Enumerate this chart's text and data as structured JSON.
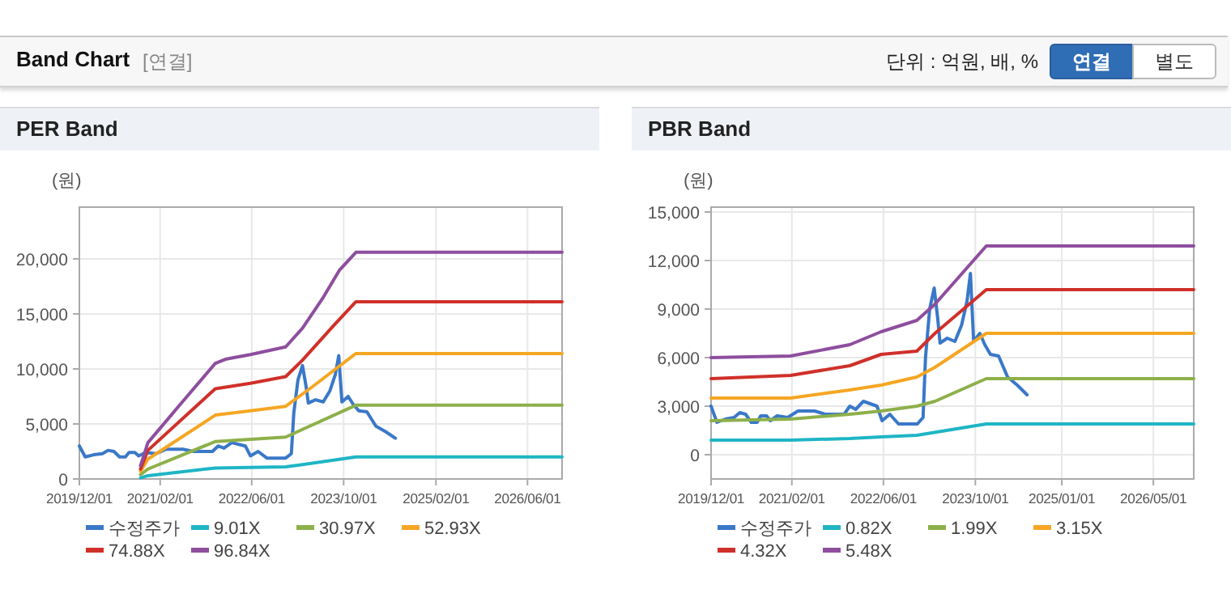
{
  "chart_data": [
    {
      "type": "other",
      "title": "Band Chart",
      "annotations": [
        "[연결]",
        "단위 : 억원, 배, %",
        "연결",
        "별도"
      ]
    },
    {
      "type": "line",
      "title": "PER Band",
      "ylabel": "(원)",
      "grid": true,
      "legend": "bottom",
      "xlim": [
        "2019-12-01",
        "2026-12-01"
      ],
      "ylim": [
        0,
        24700
      ],
      "xticks": [
        {
          "value": "2019-12-01",
          "label": "2019/12/01"
        },
        {
          "value": "2021-02-01",
          "label": "2021/02/01"
        },
        {
          "value": "2022-06-01",
          "label": "2022/06/01"
        },
        {
          "value": "2023-10-01",
          "label": "2023/10/01"
        },
        {
          "value": "2025-02-01",
          "label": "2025/02/01"
        },
        {
          "value": "2026-06-01",
          "label": "2026/06/01"
        }
      ],
      "yticks": [
        0,
        {
          "value": 5000,
          "label": "5,000"
        },
        {
          "value": 10000,
          "label": "10,000"
        },
        {
          "value": 15000,
          "label": "15,000"
        },
        {
          "value": 20000,
          "label": "20,000"
        }
      ],
      "series": [
        {
          "name": "수정주가",
          "color": "#3a78c8",
          "x": [
            "2019-12-01",
            "2020-01-01",
            "2020-02-15",
            "2020-04-01",
            "2020-05-01",
            "2020-06-01",
            "2020-07-01",
            "2020-08-01",
            "2020-08-20",
            "2020-09-20",
            "2020-10-10",
            "2020-11-15",
            "2021-01-10",
            "2021-03-05",
            "2021-06-01",
            "2021-07-28",
            "2021-11-05",
            "2021-12-05",
            "2022-01-05",
            "2022-02-15",
            "2022-04-28",
            "2022-05-25",
            "2022-07-05",
            "2022-08-20",
            "2022-11-28",
            "2022-12-28",
            "2023-01-10",
            "2023-02-01",
            "2023-02-25",
            "2023-03-15",
            "2023-03-28",
            "2023-05-05",
            "2023-06-15",
            "2023-07-20",
            "2023-08-18",
            "2023-09-05",
            "2023-09-22",
            "2023-10-25",
            "2023-11-20",
            "2023-12-20",
            "2024-02-01",
            "2024-03-20",
            "2024-05-10",
            "2024-07-01"
          ],
          "values": [
            3000,
            2000,
            2200,
            2300,
            2600,
            2500,
            2000,
            2000,
            2400,
            2400,
            2100,
            2400,
            2300,
            2700,
            2700,
            2500,
            2500,
            3000,
            2800,
            3300,
            3000,
            2100,
            2500,
            1900,
            1900,
            2300,
            6000,
            9000,
            10300,
            8500,
            6900,
            7200,
            7000,
            8000,
            9500,
            11200,
            7000,
            7500,
            6800,
            6200,
            6100,
            4800,
            4300,
            3700
          ]
        },
        {
          "name": "9.01X",
          "color": "#1fb5c5",
          "x": [
            "2020-10-20",
            "2020-11-28",
            "2021-11-20",
            "2022-11-28",
            "2023-02-25",
            "2023-12-05",
            "2026-12-01"
          ],
          "values": [
            100,
            300,
            1000,
            1100,
            1300,
            2000,
            2000
          ]
        },
        {
          "name": "30.97X",
          "color": "#8db04a",
          "x": [
            "2020-10-20",
            "2020-11-28",
            "2021-11-20",
            "2022-05-25",
            "2022-11-28",
            "2023-02-25",
            "2023-12-05",
            "2026-12-01"
          ],
          "values": [
            400,
            900,
            3400,
            3600,
            3800,
            4500,
            6700,
            6700
          ]
        },
        {
          "name": "52.93X",
          "color": "#f5a623",
          "x": [
            "2020-10-20",
            "2020-11-28",
            "2021-11-20",
            "2022-05-25",
            "2022-11-28",
            "2023-04-20",
            "2023-12-05",
            "2026-12-01"
          ],
          "values": [
            700,
            1800,
            5800,
            6200,
            6600,
            8400,
            11400,
            11400
          ]
        },
        {
          "name": "74.88X",
          "color": "#d0302a",
          "x": [
            "2020-10-20",
            "2020-11-28",
            "2021-11-20",
            "2022-05-25",
            "2022-11-28",
            "2023-02-25",
            "2023-08-12",
            "2023-12-05",
            "2026-12-01"
          ],
          "values": [
            900,
            2600,
            8200,
            8700,
            9300,
            10800,
            14000,
            16100,
            16100
          ]
        },
        {
          "name": "96.84X",
          "color": "#8e4e9e",
          "x": [
            "2020-10-20",
            "2020-11-28",
            "2021-05-05",
            "2021-11-20",
            "2022-01-18",
            "2022-05-25",
            "2022-11-28",
            "2023-02-25",
            "2023-06-15",
            "2023-09-10",
            "2023-12-05",
            "2026-12-01"
          ],
          "values": [
            1200,
            3300,
            6500,
            10500,
            10900,
            11300,
            12000,
            13700,
            16500,
            19000,
            20600,
            20600
          ]
        }
      ]
    },
    {
      "type": "line",
      "title": "PBR Band",
      "ylabel": "(원)",
      "grid": true,
      "legend": "bottom",
      "xlim": [
        "2019-12-01",
        "2026-12-01"
      ],
      "ylim": [
        -1500,
        15300
      ],
      "xticks": [
        {
          "value": "2019-12-01",
          "label": "2019/12/01"
        },
        {
          "value": "2021-02-01",
          "label": "2021/02/01"
        },
        {
          "value": "2022-06-01",
          "label": "2022/06/01"
        },
        {
          "value": "2023-10-01",
          "label": "2023/10/01"
        },
        {
          "value": "2025-01-01",
          "label": "2025/01/01"
        },
        {
          "value": "2026-05-01",
          "label": "2026/05/01"
        }
      ],
      "yticks": [
        0,
        {
          "value": 3000,
          "label": "3,000"
        },
        {
          "value": 6000,
          "label": "6,000"
        },
        {
          "value": 9000,
          "label": "9,000"
        },
        {
          "value": 12000,
          "label": "12,000"
        },
        {
          "value": 15000,
          "label": "15,000"
        }
      ],
      "series": [
        {
          "name": "수정주가",
          "color": "#3a78c8",
          "x": [
            "2019-12-01",
            "2020-01-01",
            "2020-02-15",
            "2020-04-01",
            "2020-05-01",
            "2020-06-01",
            "2020-07-01",
            "2020-08-01",
            "2020-08-20",
            "2020-09-20",
            "2020-10-10",
            "2020-11-15",
            "2021-01-10",
            "2021-03-05",
            "2021-06-01",
            "2021-07-28",
            "2021-11-05",
            "2021-12-05",
            "2022-01-05",
            "2022-02-15",
            "2022-04-28",
            "2022-05-25",
            "2022-07-05",
            "2022-08-20",
            "2022-11-28",
            "2022-12-28",
            "2023-01-10",
            "2023-02-01",
            "2023-02-25",
            "2023-03-15",
            "2023-03-28",
            "2023-05-05",
            "2023-06-15",
            "2023-07-20",
            "2023-08-18",
            "2023-09-05",
            "2023-09-22",
            "2023-10-25",
            "2023-11-20",
            "2023-12-20",
            "2024-02-01",
            "2024-03-20",
            "2024-05-10",
            "2024-07-01"
          ],
          "values": [
            3000,
            2000,
            2200,
            2300,
            2600,
            2500,
            2000,
            2000,
            2400,
            2400,
            2100,
            2400,
            2300,
            2700,
            2700,
            2500,
            2500,
            3000,
            2800,
            3300,
            3000,
            2100,
            2500,
            1900,
            1900,
            2300,
            6000,
            9000,
            10300,
            8500,
            6900,
            7200,
            7000,
            8000,
            9500,
            11200,
            7000,
            7500,
            6800,
            6200,
            6100,
            4800,
            4300,
            3700
          ]
        },
        {
          "name": "0.82X",
          "color": "#1fb5c5",
          "x": [
            "2019-12-01",
            "2021-01-25",
            "2021-12-05",
            "2022-05-20",
            "2022-11-25",
            "2023-11-28",
            "2026-12-01"
          ],
          "values": [
            900,
            900,
            1000,
            1100,
            1200,
            1900,
            1900
          ]
        },
        {
          "name": "1.99X",
          "color": "#8db04a",
          "x": [
            "2019-12-01",
            "2021-01-25",
            "2021-12-05",
            "2022-05-20",
            "2022-11-25",
            "2023-03-01",
            "2023-11-28",
            "2026-12-01"
          ],
          "values": [
            2100,
            2200,
            2500,
            2700,
            3000,
            3300,
            4700,
            4700
          ]
        },
        {
          "name": "3.15X",
          "color": "#f5a623",
          "x": [
            "2019-12-01",
            "2021-01-25",
            "2021-12-05",
            "2022-05-20",
            "2022-11-25",
            "2023-03-01",
            "2023-11-28",
            "2026-12-01"
          ],
          "values": [
            3500,
            3500,
            4000,
            4300,
            4800,
            5400,
            7500,
            7500
          ]
        },
        {
          "name": "4.32X",
          "color": "#d0302a",
          "x": [
            "2019-12-01",
            "2021-01-25",
            "2021-12-05",
            "2022-05-20",
            "2022-11-25",
            "2023-03-01",
            "2023-11-28",
            "2026-12-01"
          ],
          "values": [
            4700,
            4900,
            5500,
            6200,
            6400,
            7500,
            10200,
            10200
          ]
        },
        {
          "name": "5.48X",
          "color": "#8e4e9e",
          "x": [
            "2019-12-01",
            "2021-01-25",
            "2021-12-05",
            "2022-05-20",
            "2022-11-25",
            "2023-03-01",
            "2023-11-28",
            "2026-12-01"
          ],
          "values": [
            6000,
            6100,
            6800,
            7600,
            8300,
            9300,
            12900,
            12900
          ]
        }
      ]
    }
  ]
}
